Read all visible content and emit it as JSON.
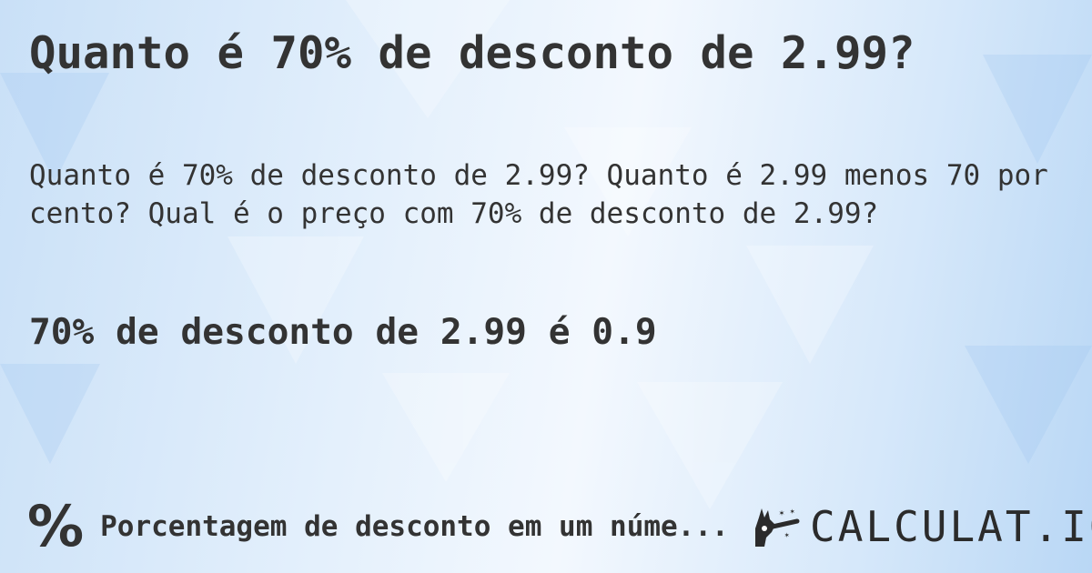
{
  "title": "Quanto é 70% de desconto de 2.99?",
  "description": "Quanto é 70% de desconto de 2.99? Quanto é 2.99 menos 70 por cento? Qual é o preço com 70% de desconto de 2.99?",
  "result": "70% de desconto de 2.99 é 0.9",
  "footer": {
    "icon": "percent-icon",
    "symbol": "%",
    "text": "Porcentagem de desconto em um núme..."
  },
  "logo": {
    "icon": "magic-hand-icon",
    "text": "CALCULAT.IO"
  },
  "colors": {
    "text": "#333333",
    "background": "#dbeafb"
  }
}
